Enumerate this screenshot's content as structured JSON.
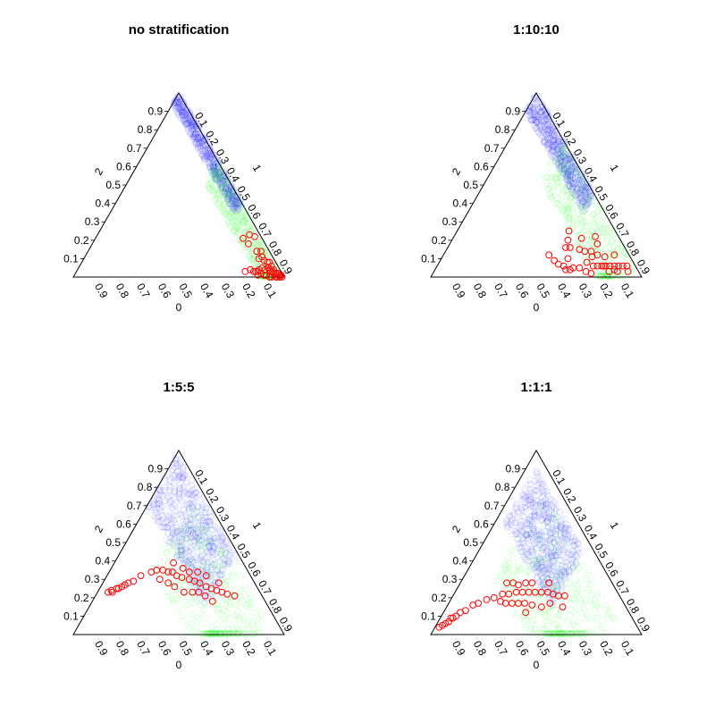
{
  "chart_data": [
    {
      "type": "scatter",
      "title": "no stratification",
      "axis_labels": {
        "left": "2",
        "right": "1",
        "bottom": "0"
      },
      "ticks": {
        "left": [
          "0.1",
          "0.2",
          "0.3",
          "0.4",
          "0.5",
          "0.6",
          "0.7",
          "0.8",
          "0.9"
        ],
        "right": [
          "0.1",
          "0.2",
          "0.3",
          "0.4",
          "0.5",
          "0.6",
          "0.7",
          "0.8",
          "0.9"
        ],
        "bottom": [
          "0.9",
          "0.8",
          "0.7",
          "0.6",
          "0.5",
          "0.4",
          "0.3",
          "0.2",
          "0.1"
        ]
      },
      "colors": {
        "blue": "#0000ff",
        "green": "#00ff00",
        "red": "#ff0000"
      },
      "cloud": [
        {
          "color": "blue",
          "count": 700,
          "p1": [
            0.0,
            0.6
          ],
          "p0": [
            0.0,
            0.06
          ]
        },
        {
          "color": "green",
          "count": 500,
          "p1": [
            0.35,
            1.0
          ],
          "p0": [
            0.0,
            0.12
          ]
        }
      ],
      "red_points": [
        {
          "p1": 0.72,
          "p0": 0.05
        },
        {
          "p1": 0.7,
          "p0": 0.09
        },
        {
          "p1": 0.74,
          "p0": 0.08
        },
        {
          "p1": 0.75,
          "p0": 0.03
        },
        {
          "p1": 0.8,
          "p0": 0.06
        },
        {
          "p1": 0.82,
          "p0": 0.04
        },
        {
          "p1": 0.83,
          "p0": 0.07
        },
        {
          "p1": 0.84,
          "p0": 0.05
        },
        {
          "p1": 0.86,
          "p0": 0.05
        },
        {
          "p1": 0.86,
          "p0": 0.1
        },
        {
          "p1": 0.88,
          "p0": 0.04
        },
        {
          "p1": 0.89,
          "p0": 0.07
        },
        {
          "p1": 0.9,
          "p0": 0.05
        },
        {
          "p1": 0.91,
          "p0": 0.08
        },
        {
          "p1": 0.92,
          "p0": 0.05
        },
        {
          "p1": 0.93,
          "p0": 0.03
        },
        {
          "p1": 0.94,
          "p0": 0.04
        },
        {
          "p1": 0.94,
          "p0": 0.06
        },
        {
          "p1": 0.95,
          "p0": 0.03
        },
        {
          "p1": 0.96,
          "p0": 0.02
        },
        {
          "p1": 0.96,
          "p0": 0.04
        },
        {
          "p1": 0.97,
          "p0": 0.02
        },
        {
          "p1": 0.98,
          "p0": 0.01
        },
        {
          "p1": 0.98,
          "p0": 0.02
        },
        {
          "p1": 0.99,
          "p0": 0.01
        },
        {
          "p1": 0.97,
          "p0": 0.03
        },
        {
          "p1": 0.93,
          "p0": 0.07
        },
        {
          "p1": 0.88,
          "p0": 0.1
        },
        {
          "p1": 0.9,
          "p0": 0.09
        },
        {
          "p1": 0.89,
          "p0": 0.03
        },
        {
          "p1": 0.91,
          "p0": 0.03
        },
        {
          "p1": 0.87,
          "p0": 0.08
        },
        {
          "p1": 0.85,
          "p0": 0.12
        },
        {
          "p1": 0.84,
          "p0": 0.13
        },
        {
          "p1": 0.82,
          "p0": 0.14
        },
        {
          "p1": 0.8,
          "p0": 0.17
        },
        {
          "p1": 0.87,
          "p0": 0.12
        },
        {
          "p1": 0.93,
          "p0": 0.04
        },
        {
          "p1": 0.91,
          "p0": 0.05
        },
        {
          "p1": 0.86,
          "p0": 0.11
        }
      ]
    },
    {
      "type": "scatter",
      "title": "1:10:10",
      "axis_labels": {
        "left": "2",
        "right": "1",
        "bottom": "0"
      },
      "ticks": {
        "left": [
          "0.1",
          "0.2",
          "0.3",
          "0.4",
          "0.5",
          "0.6",
          "0.7",
          "0.8",
          "0.9"
        ],
        "right": [
          "0.1",
          "0.2",
          "0.3",
          "0.4",
          "0.5",
          "0.6",
          "0.7",
          "0.8",
          "0.9"
        ],
        "bottom": [
          "0.9",
          "0.8",
          "0.7",
          "0.6",
          "0.5",
          "0.4",
          "0.3",
          "0.2",
          "0.1"
        ]
      },
      "colors": {
        "blue": "#0000ff",
        "green": "#00ff00",
        "red": "#ff0000"
      },
      "cloud": [
        {
          "color": "blue",
          "count": 700,
          "p1": [
            0.0,
            0.55
          ],
          "p0": [
            0.0,
            0.1
          ]
        },
        {
          "color": "green",
          "count": 500,
          "p1": [
            0.25,
            0.95
          ],
          "p0": [
            0.0,
            0.22
          ]
        }
      ],
      "red_points": [
        {
          "p1": 0.53,
          "p0": 0.22
        },
        {
          "p1": 0.55,
          "p0": 0.25
        },
        {
          "p1": 0.56,
          "p0": 0.28
        },
        {
          "p1": 0.6,
          "p0": 0.3
        },
        {
          "p1": 0.62,
          "p0": 0.34
        },
        {
          "p1": 0.65,
          "p0": 0.3
        },
        {
          "p1": 0.68,
          "p0": 0.27
        },
        {
          "p1": 0.7,
          "p0": 0.22
        },
        {
          "p1": 0.72,
          "p0": 0.25
        },
        {
          "p1": 0.74,
          "p0": 0.2
        },
        {
          "p1": 0.76,
          "p0": 0.18
        },
        {
          "p1": 0.78,
          "p0": 0.16
        },
        {
          "p1": 0.8,
          "p0": 0.14
        },
        {
          "p1": 0.82,
          "p0": 0.12
        },
        {
          "p1": 0.84,
          "p0": 0.1
        },
        {
          "p1": 0.86,
          "p0": 0.08
        },
        {
          "p1": 0.88,
          "p0": 0.06
        },
        {
          "p1": 0.9,
          "p0": 0.04
        },
        {
          "p1": 0.77,
          "p0": 0.12
        },
        {
          "p1": 0.73,
          "p0": 0.15
        },
        {
          "p1": 0.69,
          "p0": 0.17
        },
        {
          "p1": 0.66,
          "p0": 0.2
        },
        {
          "p1": 0.58,
          "p0": 0.26
        },
        {
          "p1": 0.85,
          "p0": 0.11
        },
        {
          "p1": 0.81,
          "p0": 0.07
        },
        {
          "p1": 0.71,
          "p0": 0.18
        },
        {
          "p1": 0.63,
          "p0": 0.22
        },
        {
          "p1": 0.79,
          "p0": 0.15
        },
        {
          "p1": 0.87,
          "p0": 0.1
        },
        {
          "p1": 0.75,
          "p0": 0.23
        },
        {
          "p1": 0.6,
          "p0": 0.34
        },
        {
          "p1": 0.57,
          "p0": 0.36
        },
        {
          "p1": 0.54,
          "p0": 0.37
        },
        {
          "p1": 0.5,
          "p0": 0.38
        },
        {
          "p1": 0.64,
          "p0": 0.32
        },
        {
          "p1": 0.92,
          "p0": 0.05
        },
        {
          "p1": 0.7,
          "p0": 0.12
        },
        {
          "p1": 0.83,
          "p0": 0.14
        },
        {
          "p1": 0.67,
          "p0": 0.11
        },
        {
          "p1": 0.61,
          "p0": 0.18
        }
      ]
    },
    {
      "type": "scatter",
      "title": "1:5:5",
      "axis_labels": {
        "left": "2",
        "right": "1",
        "bottom": "0"
      },
      "ticks": {
        "left": [
          "0.1",
          "0.2",
          "0.3",
          "0.4",
          "0.5",
          "0.6",
          "0.7",
          "0.8",
          "0.9"
        ],
        "right": [
          "0.1",
          "0.2",
          "0.3",
          "0.4",
          "0.5",
          "0.6",
          "0.7",
          "0.8",
          "0.9"
        ],
        "bottom": [
          "0.9",
          "0.8",
          "0.7",
          "0.6",
          "0.5",
          "0.4",
          "0.3",
          "0.2",
          "0.1"
        ]
      },
      "colors": {
        "blue": "#0000ff",
        "green": "#00ff00",
        "red": "#ff0000"
      },
      "cloud": [
        {
          "color": "blue",
          "count": 700,
          "p1": [
            0.0,
            0.55
          ],
          "p0": [
            0.02,
            0.3
          ]
        },
        {
          "color": "green",
          "count": 500,
          "p1": [
            0.2,
            0.9
          ],
          "p0": [
            0.05,
            0.45
          ]
        }
      ],
      "red_points": [
        {
          "p1": 0.05,
          "p0": 0.72
        },
        {
          "p1": 0.07,
          "p0": 0.7
        },
        {
          "p1": 0.09,
          "p0": 0.66
        },
        {
          "p1": 0.1,
          "p0": 0.64
        },
        {
          "p1": 0.12,
          "p0": 0.6
        },
        {
          "p1": 0.14,
          "p0": 0.57
        },
        {
          "p1": 0.11,
          "p0": 0.62
        },
        {
          "p1": 0.08,
          "p0": 0.67
        },
        {
          "p1": 0.06,
          "p0": 0.7
        },
        {
          "p1": 0.16,
          "p0": 0.52
        },
        {
          "p1": 0.2,
          "p0": 0.46
        },
        {
          "p1": 0.22,
          "p0": 0.43
        },
        {
          "p1": 0.25,
          "p0": 0.4
        },
        {
          "p1": 0.28,
          "p0": 0.38
        },
        {
          "p1": 0.3,
          "p0": 0.36
        },
        {
          "p1": 0.33,
          "p0": 0.35
        },
        {
          "p1": 0.36,
          "p0": 0.33
        },
        {
          "p1": 0.4,
          "p0": 0.3
        },
        {
          "p1": 0.43,
          "p0": 0.28
        },
        {
          "p1": 0.46,
          "p0": 0.26
        },
        {
          "p1": 0.5,
          "p0": 0.24
        },
        {
          "p1": 0.53,
          "p0": 0.22
        },
        {
          "p1": 0.56,
          "p0": 0.2
        },
        {
          "p1": 0.59,
          "p0": 0.18
        },
        {
          "p1": 0.62,
          "p0": 0.16
        },
        {
          "p1": 0.66,
          "p0": 0.13
        },
        {
          "p1": 0.26,
          "p0": 0.44
        },
        {
          "p1": 0.31,
          "p0": 0.41
        },
        {
          "p1": 0.35,
          "p0": 0.39
        },
        {
          "p1": 0.41,
          "p0": 0.36
        },
        {
          "p1": 0.45,
          "p0": 0.32
        },
        {
          "p1": 0.48,
          "p0": 0.29
        },
        {
          "p1": 0.52,
          "p0": 0.27
        },
        {
          "p1": 0.57,
          "p0": 0.25
        },
        {
          "p1": 0.38,
          "p0": 0.28
        },
        {
          "p1": 0.42,
          "p0": 0.24
        },
        {
          "p1": 0.47,
          "p0": 0.21
        },
        {
          "p1": 0.28,
          "p0": 0.33
        },
        {
          "p1": 0.34,
          "p0": 0.3
        },
        {
          "p1": 0.55,
          "p0": 0.17
        }
      ]
    },
    {
      "type": "scatter",
      "title": "1:1:1",
      "axis_labels": {
        "left": "2",
        "right": "1",
        "bottom": "0"
      },
      "ticks": {
        "left": [
          "0.1",
          "0.2",
          "0.3",
          "0.4",
          "0.5",
          "0.6",
          "0.7",
          "0.8",
          "0.9"
        ],
        "right": [
          "0.1",
          "0.2",
          "0.3",
          "0.4",
          "0.5",
          "0.6",
          "0.7",
          "0.8",
          "0.9"
        ],
        "bottom": [
          "0.9",
          "0.8",
          "0.7",
          "0.6",
          "0.5",
          "0.4",
          "0.3",
          "0.2",
          "0.1"
        ]
      },
      "colors": {
        "blue": "#0000ff",
        "green": "#00ff00",
        "red": "#ff0000"
      },
      "cloud": [
        {
          "color": "blue",
          "count": 700,
          "p1": [
            0.05,
            0.5
          ],
          "p0": [
            0.05,
            0.35
          ]
        },
        {
          "color": "green",
          "count": 500,
          "p1": [
            0.15,
            0.85
          ],
          "p0": [
            0.08,
            0.55
          ]
        }
      ],
      "red_points": [
        {
          "p1": 0.02,
          "p0": 0.94
        },
        {
          "p1": 0.03,
          "p0": 0.92
        },
        {
          "p1": 0.04,
          "p0": 0.9
        },
        {
          "p1": 0.05,
          "p0": 0.88
        },
        {
          "p1": 0.05,
          "p0": 0.86
        },
        {
          "p1": 0.06,
          "p0": 0.85
        },
        {
          "p1": 0.07,
          "p0": 0.83
        },
        {
          "p1": 0.08,
          "p0": 0.8
        },
        {
          "p1": 0.1,
          "p0": 0.77
        },
        {
          "p1": 0.12,
          "p0": 0.72
        },
        {
          "p1": 0.14,
          "p0": 0.69
        },
        {
          "p1": 0.17,
          "p0": 0.64
        },
        {
          "p1": 0.2,
          "p0": 0.6
        },
        {
          "p1": 0.23,
          "p0": 0.55
        },
        {
          "p1": 0.26,
          "p0": 0.52
        },
        {
          "p1": 0.29,
          "p0": 0.48
        },
        {
          "p1": 0.32,
          "p0": 0.45
        },
        {
          "p1": 0.35,
          "p0": 0.42
        },
        {
          "p1": 0.38,
          "p0": 0.39
        },
        {
          "p1": 0.41,
          "p0": 0.36
        },
        {
          "p1": 0.44,
          "p0": 0.33
        },
        {
          "p1": 0.47,
          "p0": 0.31
        },
        {
          "p1": 0.5,
          "p0": 0.29
        },
        {
          "p1": 0.53,
          "p0": 0.26
        },
        {
          "p1": 0.22,
          "p0": 0.5
        },
        {
          "p1": 0.25,
          "p0": 0.47
        },
        {
          "p1": 0.27,
          "p0": 0.56
        },
        {
          "p1": 0.3,
          "p0": 0.53
        },
        {
          "p1": 0.33,
          "p0": 0.5
        },
        {
          "p1": 0.36,
          "p0": 0.47
        },
        {
          "p1": 0.4,
          "p0": 0.44
        },
        {
          "p1": 0.45,
          "p0": 0.4
        },
        {
          "p1": 0.31,
          "p0": 0.41
        },
        {
          "p1": 0.34,
          "p0": 0.38
        },
        {
          "p1": 0.28,
          "p0": 0.45
        },
        {
          "p1": 0.42,
          "p0": 0.3
        },
        {
          "p1": 0.48,
          "p0": 0.35
        },
        {
          "p1": 0.55,
          "p0": 0.3
        },
        {
          "p1": 0.39,
          "p0": 0.49
        },
        {
          "p1": 0.24,
          "p0": 0.58
        }
      ]
    }
  ]
}
